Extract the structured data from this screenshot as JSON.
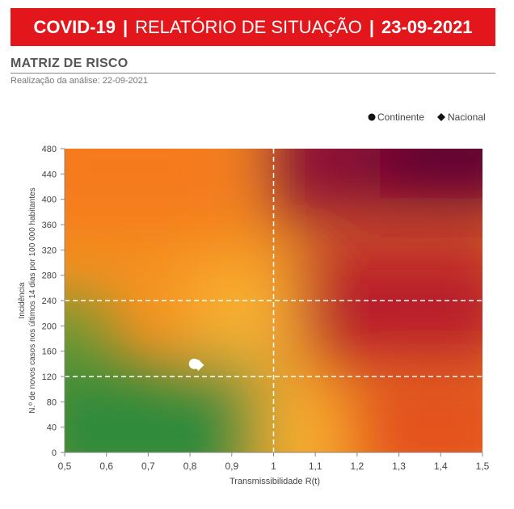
{
  "header": {
    "title_left": "COVID-19",
    "title_mid": "RELATÓRIO DE SITUAÇÃO",
    "title_right": "23-09-2021",
    "separator": "|"
  },
  "section": {
    "title": "MATRIZ DE RISCO",
    "analysis_date": "Realização da análise: 22-09-2021"
  },
  "colors": {
    "banner": "#e3161b",
    "low": "#2e8b3a",
    "mid": "#f7a72a",
    "orange": "#f57b1f",
    "high": "#5c0030"
  },
  "chart_data": {
    "type": "scatter",
    "xlabel": "Transmissibilidade R(t)",
    "ylabel_line1": "Incidência",
    "ylabel_line2": "N.º de novos casos nos últimos 14 dias por 100 000 habitantes",
    "xlim": [
      0.5,
      1.5
    ],
    "ylim": [
      0,
      480
    ],
    "x_ticks": [
      "0,5",
      "0,6",
      "0,7",
      "0,8",
      "0,9",
      "1",
      "1,1",
      "1,2",
      "1,3",
      "1,4",
      "1,5"
    ],
    "y_ticks": [
      "0",
      "40",
      "80",
      "120",
      "160",
      "200",
      "240",
      "280",
      "320",
      "360",
      "400",
      "440",
      "480"
    ],
    "thresholds": {
      "x": 1,
      "y": [
        120,
        240
      ]
    },
    "legend": {
      "position": "top-right",
      "entries": [
        {
          "name": "Continente",
          "marker": "circle"
        },
        {
          "name": "Nacional",
          "marker": "diamond"
        }
      ]
    },
    "series": [
      {
        "name": "Continente",
        "marker": "circle",
        "x": 0.81,
        "y": 140
      },
      {
        "name": "Nacional",
        "marker": "diamond",
        "x": 0.82,
        "y": 138
      }
    ]
  }
}
